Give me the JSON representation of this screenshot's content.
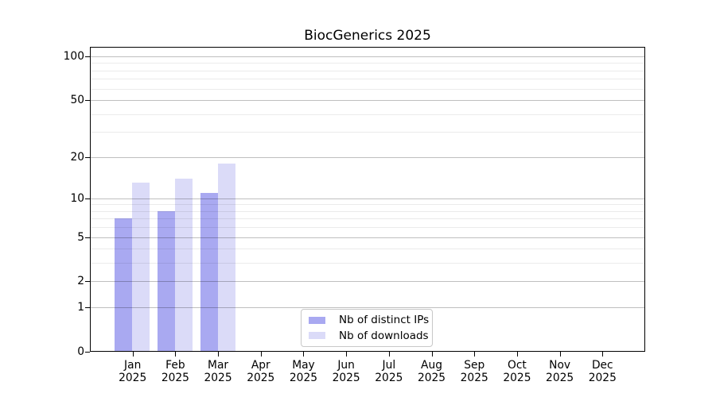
{
  "title": "BiocGenerics 2025",
  "chart_data": {
    "type": "bar",
    "title": "BiocGenerics 2025",
    "categories": [
      "Jan 2025",
      "Feb 2025",
      "Mar 2025",
      "Apr 2025",
      "May 2025",
      "Jun 2025",
      "Jul 2025",
      "Aug 2025",
      "Sep 2025",
      "Oct 2025",
      "Nov 2025",
      "Dec 2025"
    ],
    "series": [
      {
        "name": "Nb of distinct IPs",
        "color": "#a9a9f1",
        "values": [
          7,
          8,
          11,
          0,
          0,
          0,
          0,
          0,
          0,
          0,
          0,
          0
        ]
      },
      {
        "name": "Nb of downloads",
        "color": "#dbdbf8",
        "values": [
          13,
          14,
          18,
          0,
          0,
          0,
          0,
          0,
          0,
          0,
          0,
          0
        ]
      }
    ],
    "xlabel": "",
    "ylabel": "",
    "yscale": "log1p",
    "ylim": [
      0,
      116
    ],
    "yticks_major": [
      0,
      1,
      2,
      5,
      10,
      20,
      50,
      100
    ],
    "yticks_minor": [
      3,
      4,
      6,
      7,
      8,
      9,
      30,
      40,
      60,
      70,
      80,
      90
    ],
    "grid": true,
    "legend_position": "lower center inside",
    "colors": {
      "major_grid": "rgba(0,0,0,0.25)",
      "minor_grid": "rgba(0,0,0,0.08)",
      "axis": "#000000",
      "background": "#ffffff"
    }
  }
}
